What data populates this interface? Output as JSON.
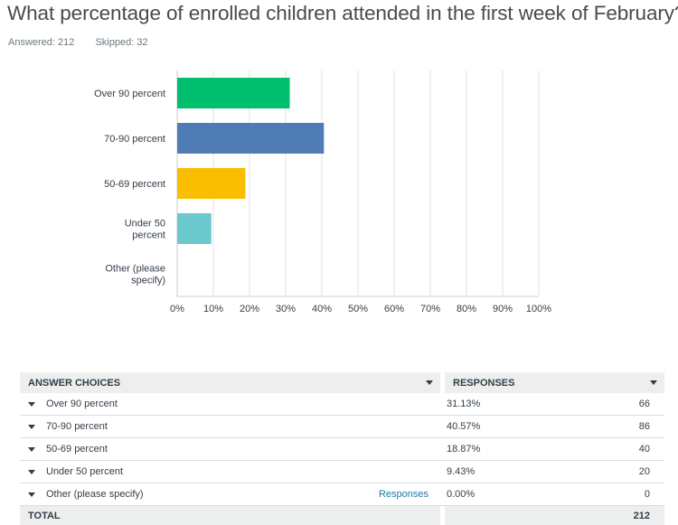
{
  "question": {
    "title": "What percentage of enrolled children attended in the first week of February?",
    "answered": "Answered: 212",
    "skipped": "Skipped: 32"
  },
  "colors": {
    "grid": "#e0e0e0",
    "axis": "#c9cfd3"
  },
  "chart_data": {
    "type": "bar",
    "orientation": "horizontal",
    "categories": [
      [
        "Over 90 percent"
      ],
      [
        "70-90 percent"
      ],
      [
        "50-69 percent"
      ],
      [
        "Under 50",
        "percent"
      ],
      [
        "Other (please",
        "specify)"
      ]
    ],
    "values": [
      31.13,
      40.57,
      18.87,
      9.43,
      0
    ],
    "bar_colors": [
      "#00bf6f",
      "#507cb6",
      "#f9be00",
      "#6bc8cd",
      "#ff8b4f"
    ],
    "xlim": [
      0,
      100
    ],
    "ticks": [
      "0%",
      "10%",
      "20%",
      "30%",
      "40%",
      "50%",
      "60%",
      "70%",
      "80%",
      "90%",
      "100%"
    ],
    "grid": true,
    "title": "",
    "xlabel": "",
    "ylabel": ""
  },
  "table": {
    "header": {
      "choices": "ANSWER CHOICES",
      "responses": "RESPONSES"
    },
    "rows": [
      {
        "choice": "Over 90 percent",
        "percent": "31.13%",
        "count": "66"
      },
      {
        "choice": "70-90 percent",
        "percent": "40.57%",
        "count": "86"
      },
      {
        "choice": "50-69 percent",
        "percent": "18.87%",
        "count": "40"
      },
      {
        "choice": "Under 50 percent",
        "percent": "9.43%",
        "count": "20"
      },
      {
        "choice": "Other (please specify)",
        "percent": "0.00%",
        "count": "0",
        "link": "Responses"
      }
    ],
    "total": {
      "label": "TOTAL",
      "count": "212"
    }
  }
}
